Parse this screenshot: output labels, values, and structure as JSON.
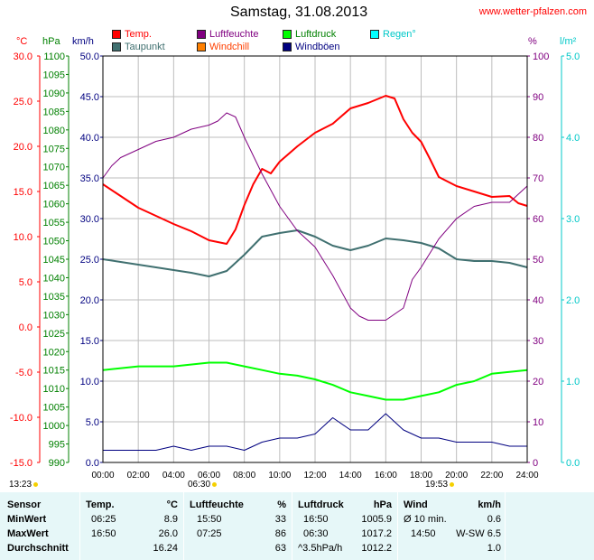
{
  "title": "Samstag, 31.08.2013",
  "source": "www.wetter-pfalzen.com",
  "legend": [
    {
      "label": "Temp.",
      "color": "#ff0000",
      "text_color": "#ff0000"
    },
    {
      "label": "Luftfeuchte",
      "color": "#800080",
      "text_color": "#800080"
    },
    {
      "label": "Luftdruck",
      "color": "#00ff00",
      "text_color": "#008000"
    },
    {
      "label": "Regen°",
      "color": "#00ffff",
      "text_color": "#00c8c8"
    },
    {
      "label": "Taupunkt",
      "color": "#407070",
      "text_color": "#407070"
    },
    {
      "label": "Windchill",
      "color": "#ff8000",
      "text_color": "#ff4000"
    },
    {
      "label": "Windböen",
      "color": "#000080",
      "text_color": "#000080"
    }
  ],
  "units": {
    "temp": "°C",
    "pressure": "hPa",
    "wind": "km/h",
    "humidity": "%",
    "rain": "l/m²"
  },
  "sun": {
    "sunrise_date": "13:23",
    "sunrise": "06:30",
    "sunset": "19:53"
  },
  "chart_data": {
    "type": "line",
    "x_ticks": [
      "00:00",
      "02:00",
      "04:00",
      "06:00",
      "08:00",
      "10:00",
      "12:00",
      "14:00",
      "16:00",
      "18:00",
      "20:00",
      "22:00",
      "24:00"
    ],
    "axes": {
      "temp": {
        "min": -15,
        "max": 30,
        "ticks": [
          "30.0",
          "25.0",
          "20.0",
          "15.0",
          "10.0",
          "5.0",
          "0.0",
          "-5.0",
          "-10.0",
          "-15.0"
        ],
        "color": "#ff0000"
      },
      "pressure": {
        "min": 990,
        "max": 1100,
        "ticks": [
          "1100",
          "1095",
          "1090",
          "1085",
          "1080",
          "1075",
          "1070",
          "1065",
          "1060",
          "1055",
          "1050",
          "1045",
          "1040",
          "1035",
          "1030",
          "1025",
          "1020",
          "1015",
          "1010",
          "1005",
          "1000",
          "995",
          "990"
        ],
        "color": "#008000"
      },
      "wind": {
        "min": 0,
        "max": 50,
        "ticks": [
          "50.0",
          "45.0",
          "40.0",
          "35.0",
          "30.0",
          "25.0",
          "20.0",
          "15.0",
          "10.0",
          "5.0",
          "0.0"
        ],
        "color": "#000080"
      },
      "humidity": {
        "min": 0,
        "max": 100,
        "ticks": [
          "100",
          "90",
          "80",
          "70",
          "60",
          "50",
          "40",
          "30",
          "20",
          "10",
          "0"
        ],
        "color": "#800080"
      },
      "rain": {
        "min": 0,
        "max": 5,
        "ticks": [
          "5.0",
          "4.0",
          "3.0",
          "2.0",
          "1.0",
          "0.0"
        ],
        "color": "#00c8c8"
      }
    },
    "series": [
      {
        "name": "Temp.",
        "axis": "temp",
        "color": "#ff0000",
        "width": 2,
        "points": [
          [
            0,
            15.8
          ],
          [
            1,
            14.5
          ],
          [
            2,
            13.2
          ],
          [
            3,
            12.3
          ],
          [
            4,
            11.4
          ],
          [
            5,
            10.6
          ],
          [
            6,
            9.6
          ],
          [
            7,
            9.2
          ],
          [
            7.5,
            10.8
          ],
          [
            8,
            13.5
          ],
          [
            8.5,
            15.8
          ],
          [
            9,
            17.5
          ],
          [
            9.5,
            17.0
          ],
          [
            10,
            18.3
          ],
          [
            11,
            20.0
          ],
          [
            12,
            21.5
          ],
          [
            13,
            22.5
          ],
          [
            14,
            24.2
          ],
          [
            15,
            24.8
          ],
          [
            16,
            25.6
          ],
          [
            16.5,
            25.3
          ],
          [
            17,
            23.0
          ],
          [
            17.5,
            21.5
          ],
          [
            18,
            20.5
          ],
          [
            18.5,
            18.6
          ],
          [
            19,
            16.6
          ],
          [
            20,
            15.6
          ],
          [
            21,
            15.0
          ],
          [
            22,
            14.4
          ],
          [
            23,
            14.5
          ],
          [
            23.5,
            13.7
          ],
          [
            24,
            13.4
          ]
        ]
      },
      {
        "name": "Taupunkt",
        "axis": "temp",
        "color": "#407070",
        "width": 2,
        "points": [
          [
            0,
            7.5
          ],
          [
            1,
            7.2
          ],
          [
            2,
            6.9
          ],
          [
            3,
            6.6
          ],
          [
            4,
            6.3
          ],
          [
            5,
            6.0
          ],
          [
            6,
            5.6
          ],
          [
            7,
            6.2
          ],
          [
            8,
            8.0
          ],
          [
            9,
            10.0
          ],
          [
            10,
            10.4
          ],
          [
            11,
            10.7
          ],
          [
            12,
            10.0
          ],
          [
            13,
            9.0
          ],
          [
            14,
            8.5
          ],
          [
            15,
            9.0
          ],
          [
            16,
            9.8
          ],
          [
            17,
            9.6
          ],
          [
            18,
            9.3
          ],
          [
            19,
            8.7
          ],
          [
            20,
            7.5
          ],
          [
            21,
            7.3
          ],
          [
            22,
            7.3
          ],
          [
            23,
            7.1
          ],
          [
            24,
            6.6
          ]
        ]
      },
      {
        "name": "Luftfeuchte",
        "axis": "humidity",
        "color": "#800080",
        "width": 1,
        "points": [
          [
            0,
            70
          ],
          [
            0.5,
            73
          ],
          [
            1,
            75
          ],
          [
            2,
            77
          ],
          [
            3,
            79
          ],
          [
            4,
            80
          ],
          [
            5,
            82
          ],
          [
            6,
            83
          ],
          [
            6.5,
            84
          ],
          [
            7,
            86
          ],
          [
            7.5,
            85
          ],
          [
            8,
            80
          ],
          [
            9,
            71
          ],
          [
            10,
            63
          ],
          [
            11,
            57
          ],
          [
            12,
            53
          ],
          [
            13,
            46
          ],
          [
            14,
            38
          ],
          [
            14.5,
            36
          ],
          [
            15,
            35
          ],
          [
            16,
            35
          ],
          [
            17,
            38
          ],
          [
            17.5,
            45
          ],
          [
            18,
            48
          ],
          [
            19,
            55
          ],
          [
            20,
            60
          ],
          [
            21,
            63
          ],
          [
            22,
            64
          ],
          [
            23,
            64
          ],
          [
            24,
            68
          ]
        ]
      },
      {
        "name": "Luftdruck",
        "axis": "pressure",
        "color": "#00ff00",
        "width": 2,
        "points": [
          [
            0,
            1015
          ],
          [
            2,
            1016
          ],
          [
            4,
            1016
          ],
          [
            6,
            1017
          ],
          [
            7,
            1017
          ],
          [
            8,
            1016
          ],
          [
            9,
            1015
          ],
          [
            10,
            1014
          ],
          [
            11,
            1013.5
          ],
          [
            12,
            1012.5
          ],
          [
            13,
            1011
          ],
          [
            14,
            1009
          ],
          [
            15,
            1008
          ],
          [
            16,
            1007
          ],
          [
            17,
            1007
          ],
          [
            18,
            1008
          ],
          [
            19,
            1009
          ],
          [
            20,
            1011
          ],
          [
            21,
            1012
          ],
          [
            22,
            1014
          ],
          [
            23,
            1014.5
          ],
          [
            24,
            1015
          ]
        ]
      },
      {
        "name": "Windböen",
        "axis": "wind",
        "color": "#000080",
        "width": 1,
        "points": [
          [
            0,
            1.5
          ],
          [
            1,
            1.5
          ],
          [
            2,
            1.5
          ],
          [
            3,
            1.5
          ],
          [
            4,
            2.0
          ],
          [
            5,
            1.5
          ],
          [
            6,
            2.0
          ],
          [
            7,
            2.0
          ],
          [
            8,
            1.5
          ],
          [
            9,
            2.5
          ],
          [
            10,
            3.0
          ],
          [
            11,
            3.0
          ],
          [
            12,
            3.5
          ],
          [
            13,
            5.5
          ],
          [
            14,
            4.0
          ],
          [
            15,
            4.0
          ],
          [
            16,
            6.0
          ],
          [
            17,
            4.0
          ],
          [
            18,
            3.0
          ],
          [
            19,
            3.0
          ],
          [
            20,
            2.5
          ],
          [
            21,
            2.5
          ],
          [
            22,
            2.5
          ],
          [
            23,
            2.0
          ],
          [
            24,
            2.0
          ]
        ]
      }
    ]
  },
  "stats": {
    "sensor": {
      "title": "Sensor",
      "rows": [
        "MinWert",
        "MaxWert",
        "Durchschnitt"
      ]
    },
    "temp": {
      "title": "Temp.",
      "unit": "°C",
      "rows": [
        {
          "time": "06:25",
          "value": "8.9"
        },
        {
          "time": "16:50",
          "value": "26.0"
        },
        {
          "time": "",
          "value": "16.24"
        }
      ]
    },
    "humidity": {
      "title": "Luftfeuchte",
      "unit": "%",
      "rows": [
        {
          "time": "15:50",
          "value": "33"
        },
        {
          "time": "07:25",
          "value": "86"
        },
        {
          "time": "",
          "value": "63"
        }
      ]
    },
    "pressure": {
      "title": "Luftdruck",
      "unit": "hPa",
      "rows": [
        {
          "time": "16:50",
          "value": "1005.9"
        },
        {
          "time": "06:30",
          "value": "1017.2"
        },
        {
          "time": "^3.5hPa/h",
          "value": "1012.2"
        }
      ]
    },
    "wind": {
      "title": "Wind",
      "unit": "km/h",
      "rows": [
        {
          "time": "Ø 10 min.",
          "value": "0.6"
        },
        {
          "time": "14:50",
          "value": "W-SW 6.5"
        },
        {
          "time": "",
          "value": "1.0"
        }
      ]
    }
  }
}
